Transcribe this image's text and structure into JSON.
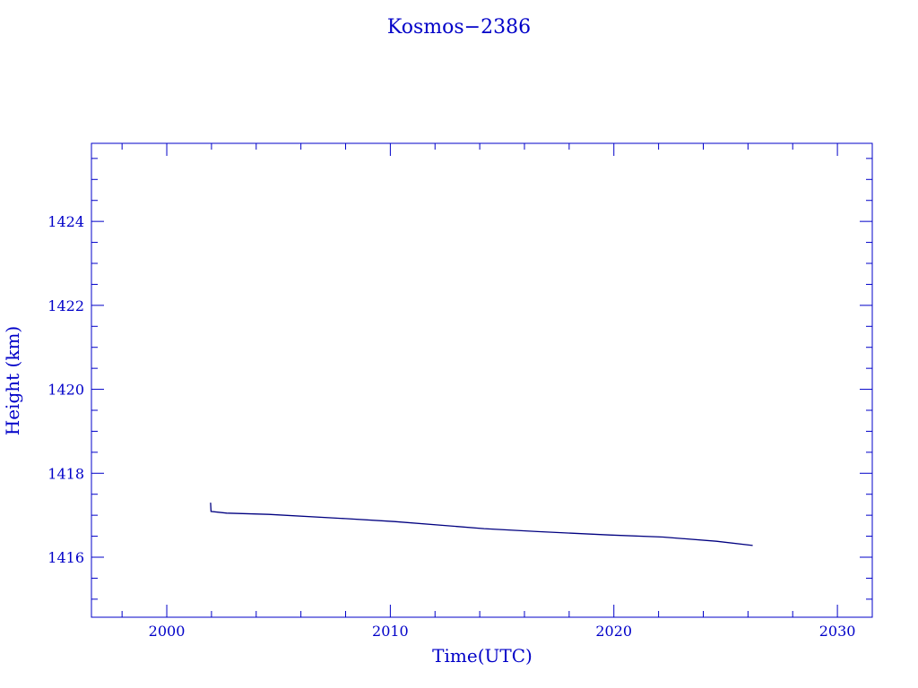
{
  "chart_data": {
    "type": "line",
    "title": "Kosmos−2386",
    "xlabel": "Time(UTC)",
    "ylabel": "Height (km)",
    "xlim": [
      1996.63,
      2031.56
    ],
    "ylim": [
      1414.57,
      1425.86
    ],
    "xticks": [
      2000,
      2010,
      2020,
      2030
    ],
    "xtick_labels": [
      "2000",
      "2010",
      "2020",
      "2030"
    ],
    "x_minor_step": 2,
    "yticks": [
      1416,
      1418,
      1420,
      1422,
      1424
    ],
    "ytick_labels": [
      "1416",
      "1418",
      "1420",
      "1422",
      "1424"
    ],
    "y_minor_step": 0.5,
    "grid": false,
    "colors": {
      "axes": "#0000c8",
      "line": "#000080"
    },
    "series": [
      {
        "x": [
          2001.96,
          2001.98,
          2002.69,
          2004.57,
          2007.98,
          2010.18,
          2014.19,
          2016.59,
          2019.8,
          2022.2,
          2024.59,
          2026.21
        ],
        "y": [
          1417.3,
          1417.09,
          1417.05,
          1417.02,
          1416.92,
          1416.85,
          1416.68,
          1416.61,
          1416.53,
          1416.48,
          1416.38,
          1416.28
        ]
      }
    ]
  }
}
